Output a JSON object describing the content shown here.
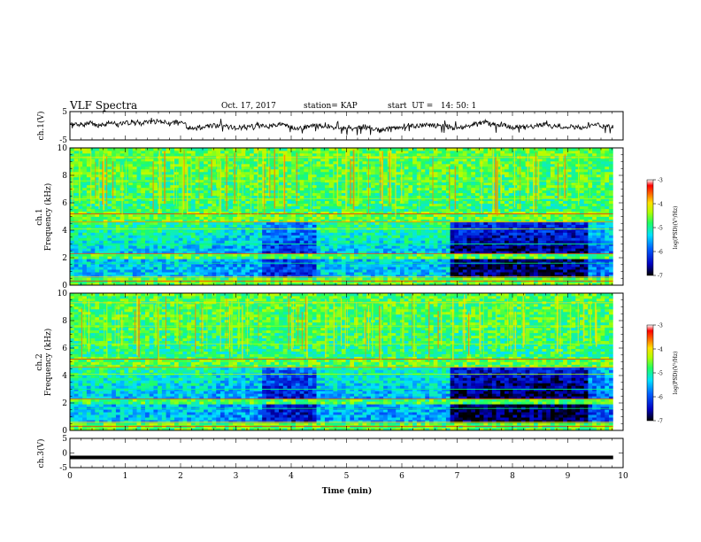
{
  "header": {
    "title": "VLF Spectra",
    "date": "Oct. 17, 2017",
    "station": "station= KAP",
    "start": "start  UT =   14: 50: 1"
  },
  "chart_data": [
    {
      "type": "line",
      "panel": "ch1-waveform",
      "ylabel": "ch.1(V)",
      "ylim": [
        -5,
        5
      ],
      "yticks": [
        "5",
        "-5"
      ],
      "xlim": [
        0,
        10
      ],
      "color": "#000000"
    },
    {
      "type": "heatmap",
      "panel": "ch1-spectrogram",
      "xlabel": "",
      "ylabel": "ch.1\nFrequency (kHz)",
      "ylabel_lines": [
        "ch.1",
        "Frequency (kHz)"
      ],
      "xlim": [
        0,
        10
      ],
      "ylim": [
        0,
        10
      ],
      "yticks": [
        "0",
        "2",
        "4",
        "6",
        "8",
        "10"
      ],
      "colorbar": {
        "label": "log(PSD)(V²/Hz)",
        "range": [
          -7,
          -3
        ],
        "ticks": [
          "-3",
          "-4",
          "-5",
          "-6",
          "-7"
        ]
      },
      "segments": [
        {
          "t_start": 0.0,
          "t_end": 2.55,
          "band_level_4khz": -5.0
        },
        {
          "t_start": 2.55,
          "t_end": 3.5,
          "band_level_4khz": -5.2
        },
        {
          "t_start": 3.5,
          "t_end": 4.45,
          "band_level_4khz": -5.8
        },
        {
          "t_start": 4.45,
          "t_end": 6.9,
          "band_level_4khz": -5.0
        },
        {
          "t_start": 6.9,
          "t_end": 9.35,
          "band_level_4khz": -6.3
        },
        {
          "t_start": 9.35,
          "t_end": 9.82,
          "band_level_4khz": -5.4
        }
      ]
    },
    {
      "type": "heatmap",
      "panel": "ch2-spectrogram",
      "ylabel": "ch.2\nFrequency (kHz)",
      "ylabel_lines": [
        "ch.2",
        "Frequency (kHz)"
      ],
      "xlim": [
        0,
        10
      ],
      "ylim": [
        0,
        10
      ],
      "yticks": [
        "0",
        "2",
        "4",
        "6",
        "8",
        "10"
      ],
      "colorbar": {
        "label": "log(PSD)(V²/Hz)",
        "range": [
          -7,
          -3
        ],
        "ticks": [
          "-3",
          "-4",
          "-5",
          "-6",
          "-7"
        ]
      },
      "segments": [
        {
          "t_start": 0.0,
          "t_end": 2.55,
          "band_level_4khz": -5.0
        },
        {
          "t_start": 2.55,
          "t_end": 3.5,
          "band_level_4khz": -5.2
        },
        {
          "t_start": 3.5,
          "t_end": 4.45,
          "band_level_4khz": -5.9
        },
        {
          "t_start": 4.45,
          "t_end": 6.9,
          "band_level_4khz": -5.1
        },
        {
          "t_start": 6.9,
          "t_end": 9.35,
          "band_level_4khz": -6.4
        },
        {
          "t_start": 9.35,
          "t_end": 9.82,
          "band_level_4khz": -5.5
        }
      ]
    },
    {
      "type": "line",
      "panel": "ch3-waveform",
      "ylabel": "ch.3(V)",
      "ylim": [
        -5,
        5
      ],
      "yticks": [
        "5",
        "0",
        "-5"
      ],
      "xlabel": "Time (min)",
      "xlim": [
        0,
        10
      ],
      "xticks": [
        "0",
        "1",
        "2",
        "3",
        "4",
        "5",
        "6",
        "7",
        "8",
        "9",
        "10"
      ],
      "value": -1.5,
      "data_end": 9.82,
      "color": "#000000"
    }
  ],
  "colormap": [
    "#000080",
    "#0000ff",
    "#0080ff",
    "#00ffff",
    "#00ff80",
    "#80ff00",
    "#ffff00",
    "#ff8000",
    "#ff0000",
    "#ffffff"
  ]
}
